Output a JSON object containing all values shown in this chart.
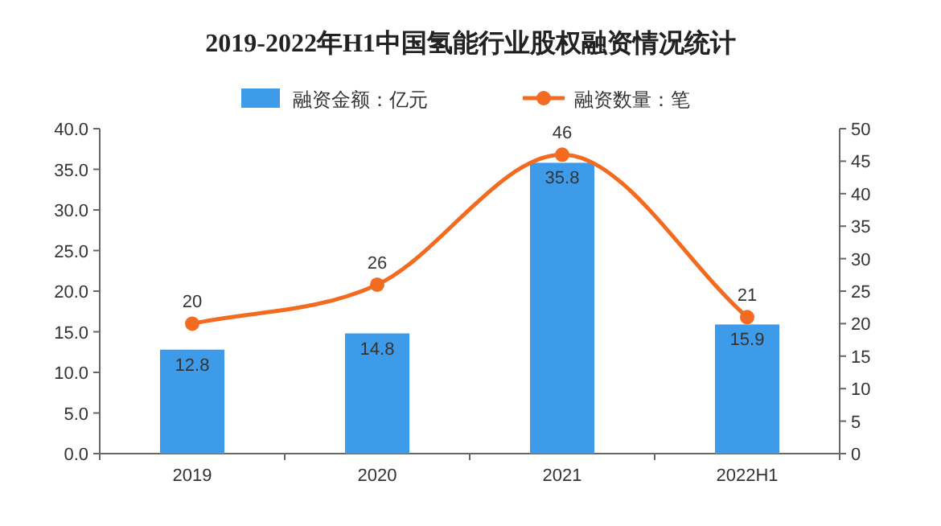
{
  "chart_data": {
    "type": "bar",
    "title": "2019-2022年H1中国氢能行业股权融资情况统计",
    "categories": [
      "2019",
      "2020",
      "2021",
      "2022H1"
    ],
    "series": [
      {
        "name": "融资金额：亿元",
        "color": "#3d9be9",
        "values": [
          12.8,
          14.8,
          35.8,
          15.9
        ]
      },
      {
        "name": "融资数量：笔",
        "type": "line",
        "axis": "y2",
        "color": "#f26b21",
        "marker": "circle",
        "values": [
          20,
          26,
          46,
          21
        ]
      }
    ],
    "ylim": [
      0,
      40
    ],
    "yticks": [
      {
        "value": 0,
        "label": "0.0"
      },
      {
        "value": 5,
        "label": "5.0"
      },
      {
        "value": 10,
        "label": "10.0"
      },
      {
        "value": 15,
        "label": "15.0"
      },
      {
        "value": 20,
        "label": "20.0"
      },
      {
        "value": 25,
        "label": "25.0"
      },
      {
        "value": 30,
        "label": "30.0"
      },
      {
        "value": 35,
        "label": "35.0"
      },
      {
        "value": 40,
        "label": "40.0"
      }
    ],
    "y2lim": [
      0,
      50
    ],
    "y2ticks": [
      0,
      5,
      10,
      15,
      20,
      25,
      30,
      35,
      40,
      45,
      50
    ],
    "data_labels": true,
    "legend": "top",
    "grid": false
  }
}
